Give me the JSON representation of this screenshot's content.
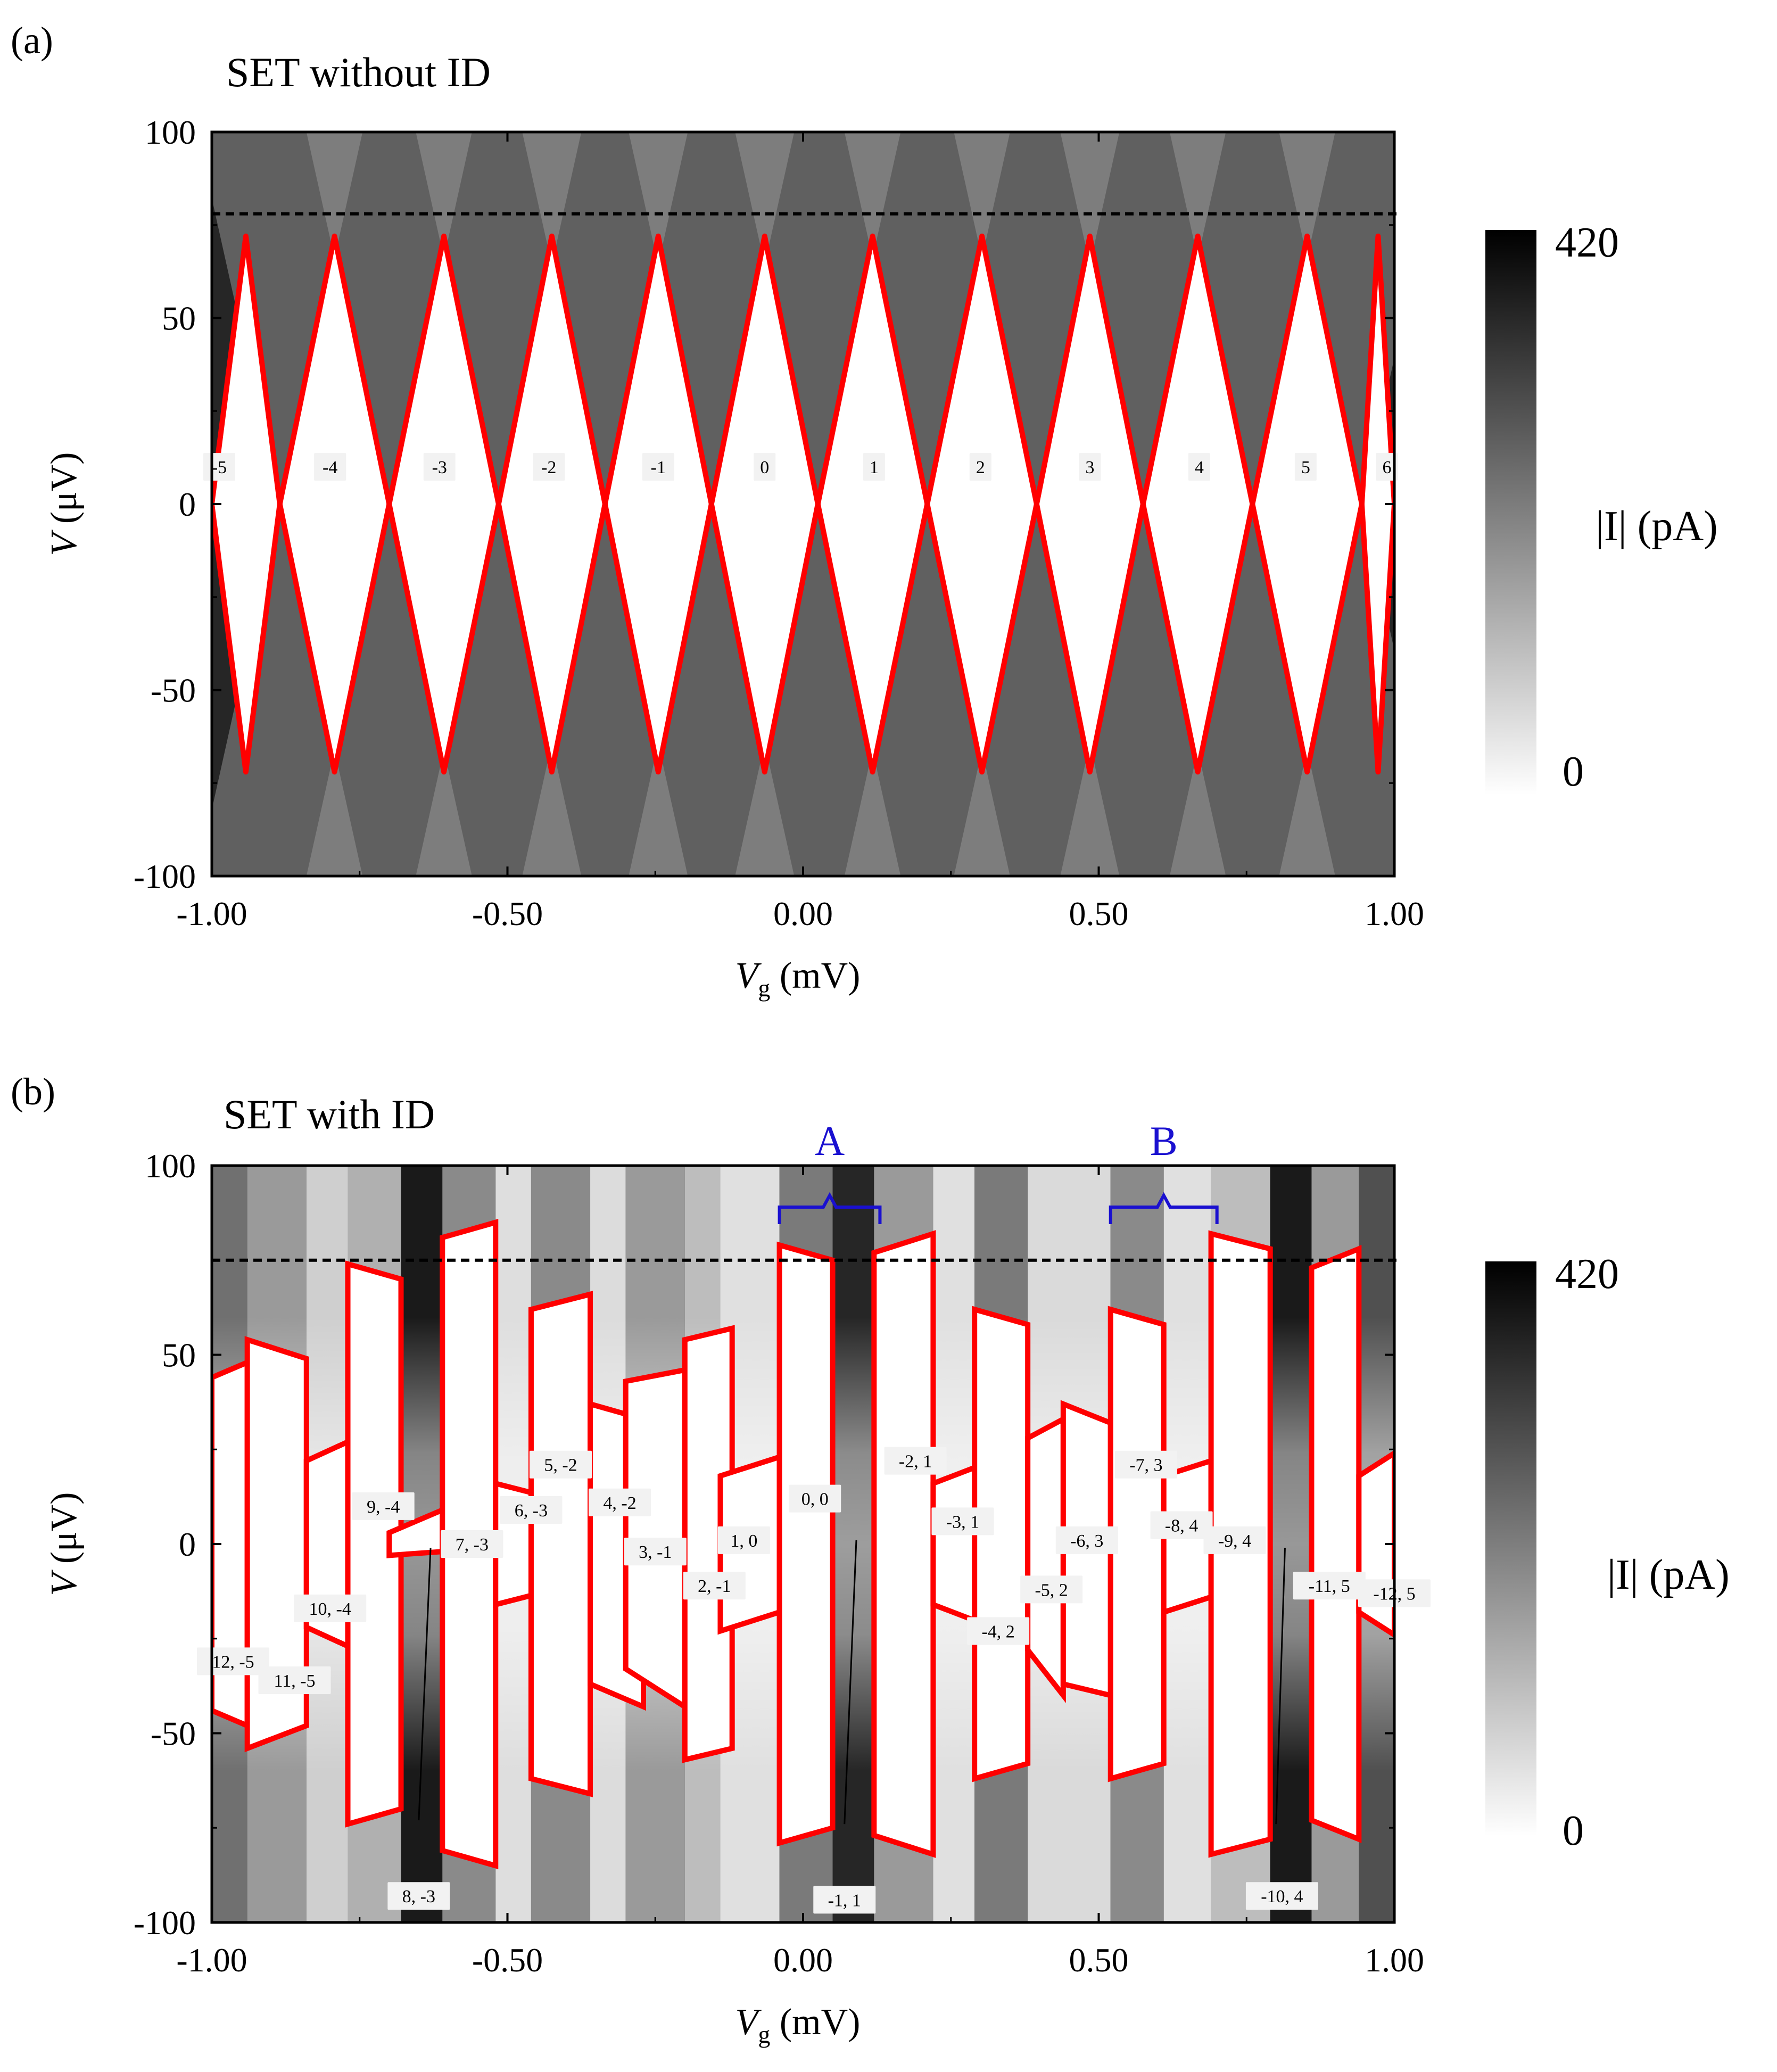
{
  "panels": [
    {
      "panel_label": "(a)",
      "title": "SET without ID",
      "colorbar": {
        "label": "|I| (pA)",
        "max": "420",
        "min": "0"
      }
    },
    {
      "panel_label": "(b)",
      "title": "SET with ID",
      "colorbar": {
        "label": "|I| (pA)",
        "max": "420",
        "min": "0"
      }
    }
  ],
  "chart_data": [
    {
      "type": "heatmap",
      "title": "SET without ID",
      "xlabel": "Vg (mV)",
      "ylabel": "V (μV)",
      "xlim": [
        -1.0,
        1.0
      ],
      "ylim": [
        -100,
        100
      ],
      "xticks": [
        "-1.00",
        "-0.50",
        "0.00",
        "0.50",
        "1.00"
      ],
      "yticks": [
        "100",
        "50",
        "0",
        "-50",
        "-100"
      ],
      "colorbar": {
        "label": "|I| (pA)",
        "range": [
          0,
          420
        ]
      },
      "reference_line": {
        "V": 78,
        "style": "dashed"
      },
      "diamond_half_height": 72,
      "diamond_line_color": "#ff0000",
      "diamond_boundaries_vg": [
        -1.0,
        -0.885,
        -0.7,
        -0.515,
        -0.335,
        -0.155,
        0.025,
        0.21,
        0.395,
        0.575,
        0.76,
        0.945,
        1.0
      ],
      "diamonds": [
        {
          "label": "-5",
          "vg": -0.99
        },
        {
          "label": "-4",
          "vg": -0.8
        },
        {
          "label": "-3",
          "vg": -0.615
        },
        {
          "label": "-2",
          "vg": -0.43
        },
        {
          "label": "-1",
          "vg": -0.245
        },
        {
          "label": "0",
          "vg": -0.065
        },
        {
          "label": "1",
          "vg": 0.12
        },
        {
          "label": "2",
          "vg": 0.3
        },
        {
          "label": "3",
          "vg": 0.485
        },
        {
          "label": "4",
          "vg": 0.67
        },
        {
          "label": "5",
          "vg": 0.85
        },
        {
          "label": "6",
          "vg": 1.0
        }
      ]
    },
    {
      "type": "heatmap",
      "title": "SET with ID",
      "xlabel": "Vg (mV)",
      "ylabel": "V (μV)",
      "xlim": [
        -1.0,
        1.0
      ],
      "ylim": [
        -100,
        100
      ],
      "xticks": [
        "-1.00",
        "-0.50",
        "0.00",
        "0.50",
        "1.00"
      ],
      "yticks": [
        "100",
        "50",
        "0",
        "-50",
        "-100"
      ],
      "colorbar": {
        "label": "|I| (pA)",
        "range": [
          0,
          420
        ]
      },
      "reference_line": {
        "V": 75,
        "style": "dashed"
      },
      "region_color": "#1a10d0",
      "regions": [
        {
          "name": "A",
          "vg_range": [
            -0.04,
            0.13
          ]
        },
        {
          "name": "B",
          "vg_range": [
            0.52,
            0.7
          ]
        }
      ],
      "parallelograms": [
        {
          "vg": [
            -1.0,
            -0.94
          ],
          "top": [
            44,
            48
          ],
          "bot": [
            -44,
            -48
          ]
        },
        {
          "vg": [
            -0.94,
            -0.84
          ],
          "top": [
            54,
            49
          ],
          "bot": [
            -54,
            -48
          ]
        },
        {
          "vg": [
            -0.84,
            -0.77
          ],
          "top": [
            22,
            27
          ],
          "bot": [
            -22,
            -27
          ]
        },
        {
          "vg": [
            -0.77,
            -0.68
          ],
          "top": [
            74,
            70
          ],
          "bot": [
            -74,
            -70
          ]
        },
        {
          "vg": [
            -0.7,
            -0.61
          ],
          "top": [
            3,
            9
          ],
          "bot": [
            -3,
            -2
          ]
        },
        {
          "vg": [
            -0.61,
            -0.52
          ],
          "top": [
            81,
            85
          ],
          "bot": [
            -81,
            -85
          ]
        },
        {
          "vg": [
            -0.52,
            -0.42
          ],
          "top": [
            16,
            12
          ],
          "bot": [
            -16,
            -12
          ]
        },
        {
          "vg": [
            -0.46,
            -0.36
          ],
          "top": [
            62,
            66
          ],
          "bot": [
            -62,
            -66
          ]
        },
        {
          "vg": [
            -0.36,
            -0.27
          ],
          "top": [
            37,
            33
          ],
          "bot": [
            -37,
            -43
          ]
        },
        {
          "vg": [
            -0.3,
            -0.2
          ],
          "top": [
            43,
            46
          ],
          "bot": [
            -33,
            -43
          ]
        },
        {
          "vg": [
            -0.2,
            -0.12
          ],
          "top": [
            54,
            57
          ],
          "bot": [
            -57,
            -54
          ]
        },
        {
          "vg": [
            -0.14,
            -0.04
          ],
          "top": [
            18,
            23
          ],
          "bot": [
            -23,
            -18
          ]
        },
        {
          "vg": [
            -0.04,
            0.05
          ],
          "top": [
            79,
            75
          ],
          "bot": [
            -79,
            -75
          ]
        },
        {
          "vg": [
            0.12,
            0.22
          ],
          "top": [
            77,
            82
          ],
          "bot": [
            -77,
            -82
          ]
        },
        {
          "vg": [
            0.22,
            0.32
          ],
          "top": [
            16,
            22
          ],
          "bot": [
            -16,
            -22
          ]
        },
        {
          "vg": [
            0.29,
            0.38
          ],
          "top": [
            62,
            58
          ],
          "bot": [
            -62,
            -58
          ]
        },
        {
          "vg": [
            0.38,
            0.44
          ],
          "top": [
            28,
            33
          ],
          "bot": [
            -28,
            -40
          ]
        },
        {
          "vg": [
            0.44,
            0.52
          ],
          "top": [
            37,
            32
          ],
          "bot": [
            -37,
            -40
          ]
        },
        {
          "vg": [
            0.52,
            0.61
          ],
          "top": [
            62,
            58
          ],
          "bot": [
            -62,
            -58
          ]
        },
        {
          "vg": [
            0.61,
            0.69
          ],
          "top": [
            18,
            22
          ],
          "bot": [
            -18,
            -14
          ]
        },
        {
          "vg": [
            0.69,
            0.79
          ],
          "top": [
            82,
            78
          ],
          "bot": [
            -82,
            -78
          ]
        },
        {
          "vg": [
            0.86,
            0.94
          ],
          "top": [
            73,
            78
          ],
          "bot": [
            -73,
            -78
          ]
        },
        {
          "vg": [
            0.94,
            1.0
          ],
          "top": [
            18,
            24
          ],
          "bot": [
            -18,
            -24
          ]
        }
      ],
      "state_labels": [
        {
          "label": "12, -5",
          "vg": -0.97,
          "V": -31
        },
        {
          "label": "11, -5",
          "vg": -0.86,
          "V": -36
        },
        {
          "label": "10, -4",
          "vg": -0.8,
          "V": -17
        },
        {
          "label": "9, -4",
          "vg": -0.71,
          "V": 10
        },
        {
          "label": "8, -3",
          "vg": -0.65,
          "V": -93
        },
        {
          "label": "7, -3",
          "vg": -0.56,
          "V": 0
        },
        {
          "label": "6, -3",
          "vg": -0.46,
          "V": 9
        },
        {
          "label": "5, -2",
          "vg": -0.41,
          "V": 21
        },
        {
          "label": "4, -2",
          "vg": -0.31,
          "V": 11
        },
        {
          "label": "3, -1",
          "vg": -0.25,
          "V": -2
        },
        {
          "label": "2, -1",
          "vg": -0.15,
          "V": -11
        },
        {
          "label": "1, 0",
          "vg": -0.1,
          "V": 1
        },
        {
          "label": "0, 0",
          "vg": 0.02,
          "V": 12
        },
        {
          "label": "-1, 1",
          "vg": 0.07,
          "V": -94
        },
        {
          "label": "-2, 1",
          "vg": 0.19,
          "V": 22
        },
        {
          "label": "-3, 1",
          "vg": 0.27,
          "V": 6
        },
        {
          "label": "-4, 2",
          "vg": 0.33,
          "V": -23
        },
        {
          "label": "-5, 2",
          "vg": 0.42,
          "V": -12
        },
        {
          "label": "-6, 3",
          "vg": 0.48,
          "V": 1
        },
        {
          "label": "-7, 3",
          "vg": 0.58,
          "V": 21
        },
        {
          "label": "-8, 4",
          "vg": 0.64,
          "V": 5
        },
        {
          "label": "-9, 4",
          "vg": 0.73,
          "V": 1
        },
        {
          "label": "-10, 4",
          "vg": 0.81,
          "V": -93
        },
        {
          "label": "-11, 5",
          "vg": 0.89,
          "V": -11
        },
        {
          "label": "-12, 5",
          "vg": 1.0,
          "V": -13
        }
      ],
      "leaders": [
        {
          "from_label": "8, -3",
          "vg": [
            -0.65,
            -0.63
          ],
          "V": [
            -73,
            -1
          ]
        },
        {
          "from_label": "-1, 1",
          "vg": [
            0.07,
            0.09
          ],
          "V": [
            -74,
            1
          ]
        },
        {
          "from_label": "-10, 4",
          "vg": [
            0.8,
            0.815
          ],
          "V": [
            -74,
            -1
          ]
        }
      ]
    }
  ]
}
